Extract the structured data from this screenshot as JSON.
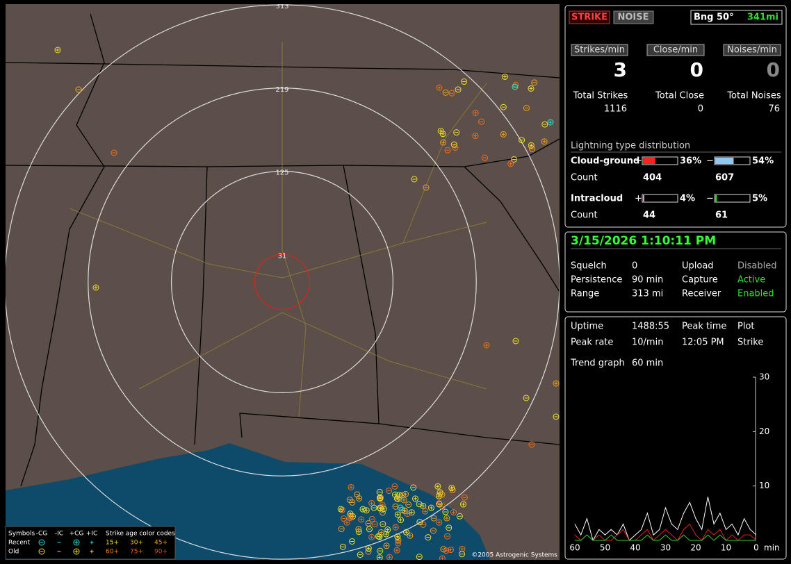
{
  "header": {
    "strike_button": "STRIKE",
    "noise_button": "NOISE",
    "bearing": "Bng 50°",
    "range": "341mi"
  },
  "rates": [
    {
      "label": "Strikes/min",
      "value": 3
    },
    {
      "label": "Close/min",
      "value": 0
    },
    {
      "label": "Noises/min",
      "value": 0
    }
  ],
  "totals": [
    {
      "label": "Total Strikes",
      "value": 1116
    },
    {
      "label": "Total Close",
      "value": 0
    },
    {
      "label": "Total Noises",
      "value": 76
    }
  ],
  "distribution": {
    "title": "Lightning type distribution",
    "count_label": "Count",
    "rows": [
      {
        "label": "Cloud-ground",
        "pos_sign": "+",
        "pos_pct": {
          "value": 36,
          "label": "36%"
        },
        "pos_color": "#ff2020",
        "neg_sign": "−",
        "neg_pct": {
          "value": 54,
          "label": "54%"
        },
        "neg_color": "#90c8f0",
        "pos_count": 404,
        "neg_count": 607
      },
      {
        "label": "Intracloud",
        "pos_sign": "+",
        "pos_pct": {
          "value": 4,
          "label": "4%"
        },
        "pos_color": "#ff80c0",
        "neg_sign": "−",
        "neg_pct": {
          "value": 5,
          "label": "5%"
        },
        "neg_color": "#30d030",
        "pos_count": 44,
        "neg_count": 61
      }
    ]
  },
  "status": {
    "datetime": "3/15/2026 1:10:11 PM",
    "rows": [
      [
        "Squelch",
        0,
        "Upload",
        "Disabled"
      ],
      [
        "Persistence",
        "90 min",
        "Capture",
        "Active"
      ],
      [
        "Range",
        "313 mi",
        "Receiver",
        "Enabled"
      ]
    ],
    "state_colors": [
      "#aaaaaa",
      "#33dd33",
      "#33dd33"
    ]
  },
  "stats": {
    "rows": [
      [
        "Uptime",
        "1488:55",
        "Peak time",
        "Plot"
      ],
      [
        "Peak rate",
        "10/min",
        "12:05 PM",
        "Strike"
      ]
    ],
    "trend_label": "Trend graph",
    "trend_window": "60 min"
  },
  "trend_graph": {
    "type": "line",
    "x": [
      60,
      58,
      56,
      54,
      52,
      50,
      48,
      46,
      44,
      42,
      40,
      38,
      36,
      34,
      32,
      30,
      28,
      26,
      24,
      22,
      20,
      18,
      16,
      14,
      12,
      10,
      8,
      6,
      4,
      2,
      0
    ],
    "xlim": [
      60,
      0
    ],
    "xticks": [
      60,
      50,
      40,
      30,
      20,
      10,
      0
    ],
    "x_unit": "min",
    "ylim": [
      0,
      30
    ],
    "yticks": [
      10,
      20,
      30
    ],
    "series": [
      {
        "color": "#ffffff",
        "values": [
          3,
          1,
          4,
          0,
          2,
          1,
          2,
          1,
          3,
          0,
          1,
          2,
          5,
          1,
          2,
          6,
          3,
          2,
          5,
          7,
          4,
          2,
          8,
          3,
          5,
          2,
          3,
          1,
          4,
          2,
          1
        ]
      },
      {
        "color": "#e02020",
        "values": [
          1,
          0,
          1,
          0,
          1,
          0,
          0,
          1,
          2,
          0,
          0,
          1,
          2,
          0,
          1,
          2,
          1,
          0,
          2,
          3,
          1,
          0,
          2,
          1,
          2,
          0,
          1,
          0,
          1,
          1,
          0
        ]
      },
      {
        "color": "#30d030",
        "values": [
          0,
          0,
          1,
          0,
          0,
          0,
          1,
          0,
          0,
          0,
          0,
          0,
          1,
          0,
          0,
          1,
          0,
          0,
          1,
          0,
          0,
          0,
          1,
          0,
          1,
          0,
          0,
          0,
          0,
          0,
          0
        ]
      }
    ]
  },
  "map": {
    "range_rings": [
      313,
      219,
      125,
      31
    ],
    "legend": {
      "title": "Symbols",
      "columns": [
        "-CG",
        "-IC",
        "+CG",
        "+IC"
      ],
      "age_title": "Strike age color codes",
      "rows": [
        {
          "label": "Recent",
          "ages": [
            "15+",
            "30+",
            "45+"
          ]
        },
        {
          "label": "Old",
          "ages": [
            "60+",
            "75+",
            "90+"
          ]
        }
      ]
    },
    "copyright": "©2005 Astrogenic Systems"
  }
}
